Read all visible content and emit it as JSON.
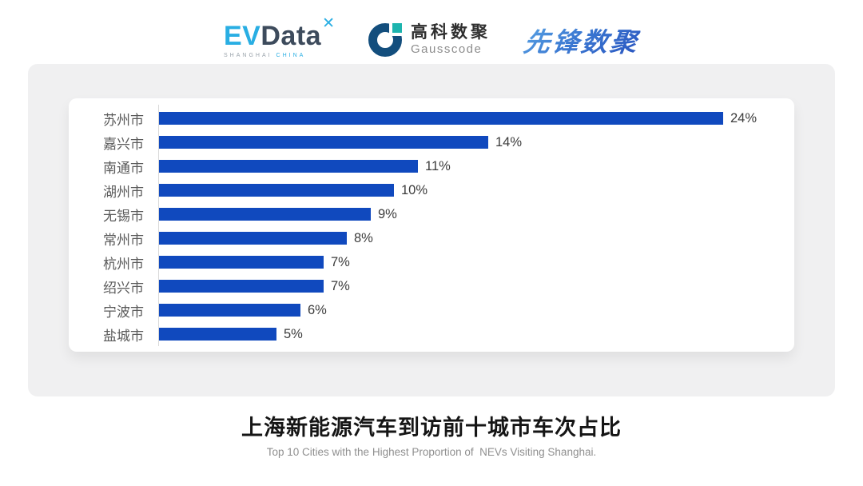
{
  "header": {
    "evdata": {
      "part1": "EV",
      "part2": "Data",
      "x_mark": "✕",
      "sub_left": "SHANGHAI",
      "sub_right": "CHINA",
      "blue": "#29aee3",
      "dark": "#3d4b5c"
    },
    "gausscode": {
      "cn": "高科数聚",
      "en": "Gausscode",
      "mark_navy": "#134e7d",
      "mark_teal": "#1db4ae"
    },
    "pioneer": {
      "text": "先锋数聚",
      "color": "#2f6bcc"
    }
  },
  "chart_data": {
    "type": "bar",
    "orientation": "horizontal",
    "title": "上海新能源汽车到访前十城市车次占比",
    "subtitle": "Top 10 Cities with the Highest Proportion of  NEVs Visiting Shanghai.",
    "categories": [
      "苏州市",
      "嘉兴市",
      "南通市",
      "湖州市",
      "无锡市",
      "常州市",
      "杭州市",
      "绍兴市",
      "宁波市",
      "盐城市"
    ],
    "values": [
      24,
      14,
      11,
      10,
      9,
      8,
      7,
      7,
      6,
      5
    ],
    "value_labels": [
      "24%",
      "14%",
      "11%",
      "10%",
      "9%",
      "8%",
      "7%",
      "7%",
      "6%",
      "5%"
    ],
    "unit": "%",
    "xlabel": "",
    "ylabel": "",
    "xlim": [
      0,
      24
    ],
    "grid": false,
    "legend": false,
    "bar_color": "#1049be",
    "axis_color": "#d9d9d9"
  }
}
